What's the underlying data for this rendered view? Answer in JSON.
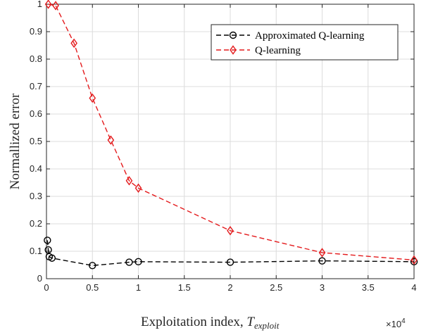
{
  "chart_data": {
    "type": "line",
    "xlabel": "Exploitation index,",
    "xlabel_symbol": "T",
    "xlabel_subscript": "exploit",
    "ylabel": "Normallized error",
    "x_multiplier_base": "×10",
    "x_multiplier_exp": "4",
    "xlim": [
      0,
      4
    ],
    "ylim": [
      0,
      1
    ],
    "xticks": [
      "0",
      "0.5",
      "1",
      "1.5",
      "2",
      "2.5",
      "3",
      "3.5",
      "4"
    ],
    "yticks": [
      "0",
      "0.1",
      "0.2",
      "0.3",
      "0.4",
      "0.5",
      "0.6",
      "0.7",
      "0.8",
      "0.9",
      "1"
    ],
    "grid": true,
    "legend_position": "top-right",
    "series": [
      {
        "name": "Approximated Q-learning",
        "color": "#000000",
        "marker": "circle",
        "line_style": "dashed",
        "x": [
          0.01,
          0.02,
          0.03,
          0.06,
          0.5,
          0.9,
          1.0,
          2.0,
          3.0,
          4.0
        ],
        "y": [
          0.14,
          0.105,
          0.08,
          0.075,
          0.048,
          0.06,
          0.062,
          0.06,
          0.065,
          0.062
        ]
      },
      {
        "name": "Q-learning",
        "color": "#e41a1c",
        "marker": "diamond",
        "line_style": "dashed",
        "x": [
          0.02,
          0.1,
          0.3,
          0.5,
          0.7,
          0.9,
          1.0,
          2.0,
          3.0,
          4.0
        ],
        "y": [
          1.0,
          0.995,
          0.858,
          0.658,
          0.505,
          0.357,
          0.33,
          0.175,
          0.095,
          0.068
        ]
      }
    ]
  }
}
